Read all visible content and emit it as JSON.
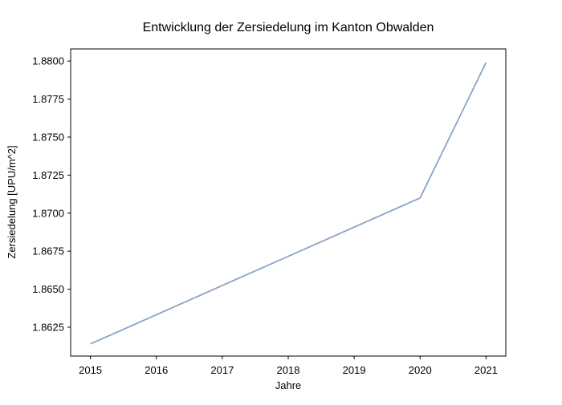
{
  "chart_data": {
    "type": "line",
    "title": "Entwicklung der Zersiedelung im Kanton Obwalden",
    "xlabel": "Jahre",
    "ylabel": "Zersiedelung [UPU/m^2]",
    "x": [
      2015,
      2020,
      2021
    ],
    "series": [
      {
        "name": "Zersiedelung",
        "values": [
          1.8614,
          1.871,
          1.8799
        ],
        "color": "#8ca3c8"
      }
    ],
    "xlim": [
      2014.7,
      2021.3
    ],
    "ylim": [
      1.8606,
      1.8808
    ],
    "xticks": [
      2015,
      2016,
      2017,
      2018,
      2019,
      2020,
      2021
    ],
    "xtick_labels": [
      "2015",
      "2016",
      "2017",
      "2018",
      "2019",
      "2020",
      "2021"
    ],
    "yticks": [
      1.8625,
      1.865,
      1.8675,
      1.87,
      1.8725,
      1.875,
      1.8775,
      1.88
    ],
    "ytick_labels": [
      "1.8625",
      "1.8650",
      "1.8675",
      "1.8700",
      "1.8725",
      "1.8750",
      "1.8775",
      "1.8800"
    ],
    "grid": false,
    "legend": "none"
  }
}
